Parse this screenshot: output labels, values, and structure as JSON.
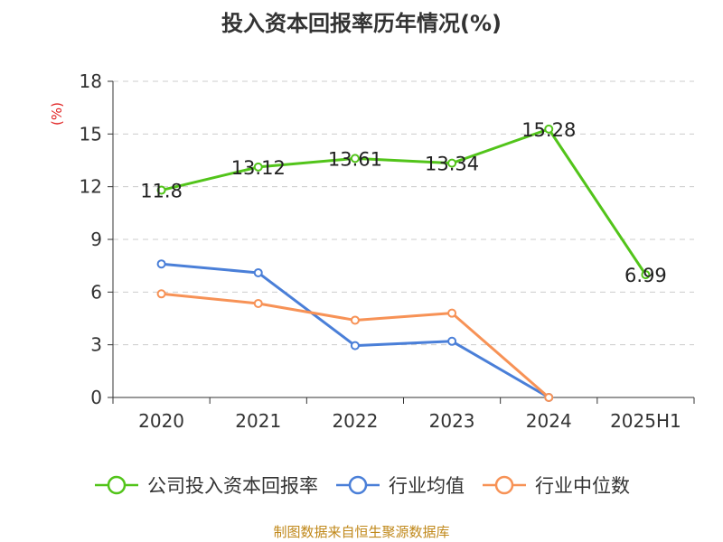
{
  "chart_data": {
    "type": "line",
    "title": "投入资本回报率历年情况(%)",
    "ylabel": "(%)",
    "categories": [
      "2020",
      "2021",
      "2022",
      "2023",
      "2024",
      "2025H1"
    ],
    "yticks": [
      0,
      3,
      6,
      9,
      12,
      15,
      18
    ],
    "ylim": [
      0,
      18
    ],
    "grid": true,
    "legend_position": "bottom",
    "series": [
      {
        "name": "公司投入资本回报率",
        "color": "#52c41a",
        "values": [
          11.8,
          13.12,
          13.61,
          13.34,
          15.28,
          6.99
        ],
        "labels": [
          "11.8",
          "13.12",
          "13.61",
          "13.34",
          "15.28",
          "6.99"
        ]
      },
      {
        "name": "行业均值",
        "color": "#4a7fd8",
        "values": [
          7.6,
          7.1,
          2.95,
          3.2,
          0,
          null
        ]
      },
      {
        "name": "行业中位数",
        "color": "#f79256",
        "values": [
          5.9,
          5.35,
          4.4,
          4.8,
          0,
          null
        ]
      }
    ]
  },
  "source": "制图数据来自恒生聚源数据库"
}
